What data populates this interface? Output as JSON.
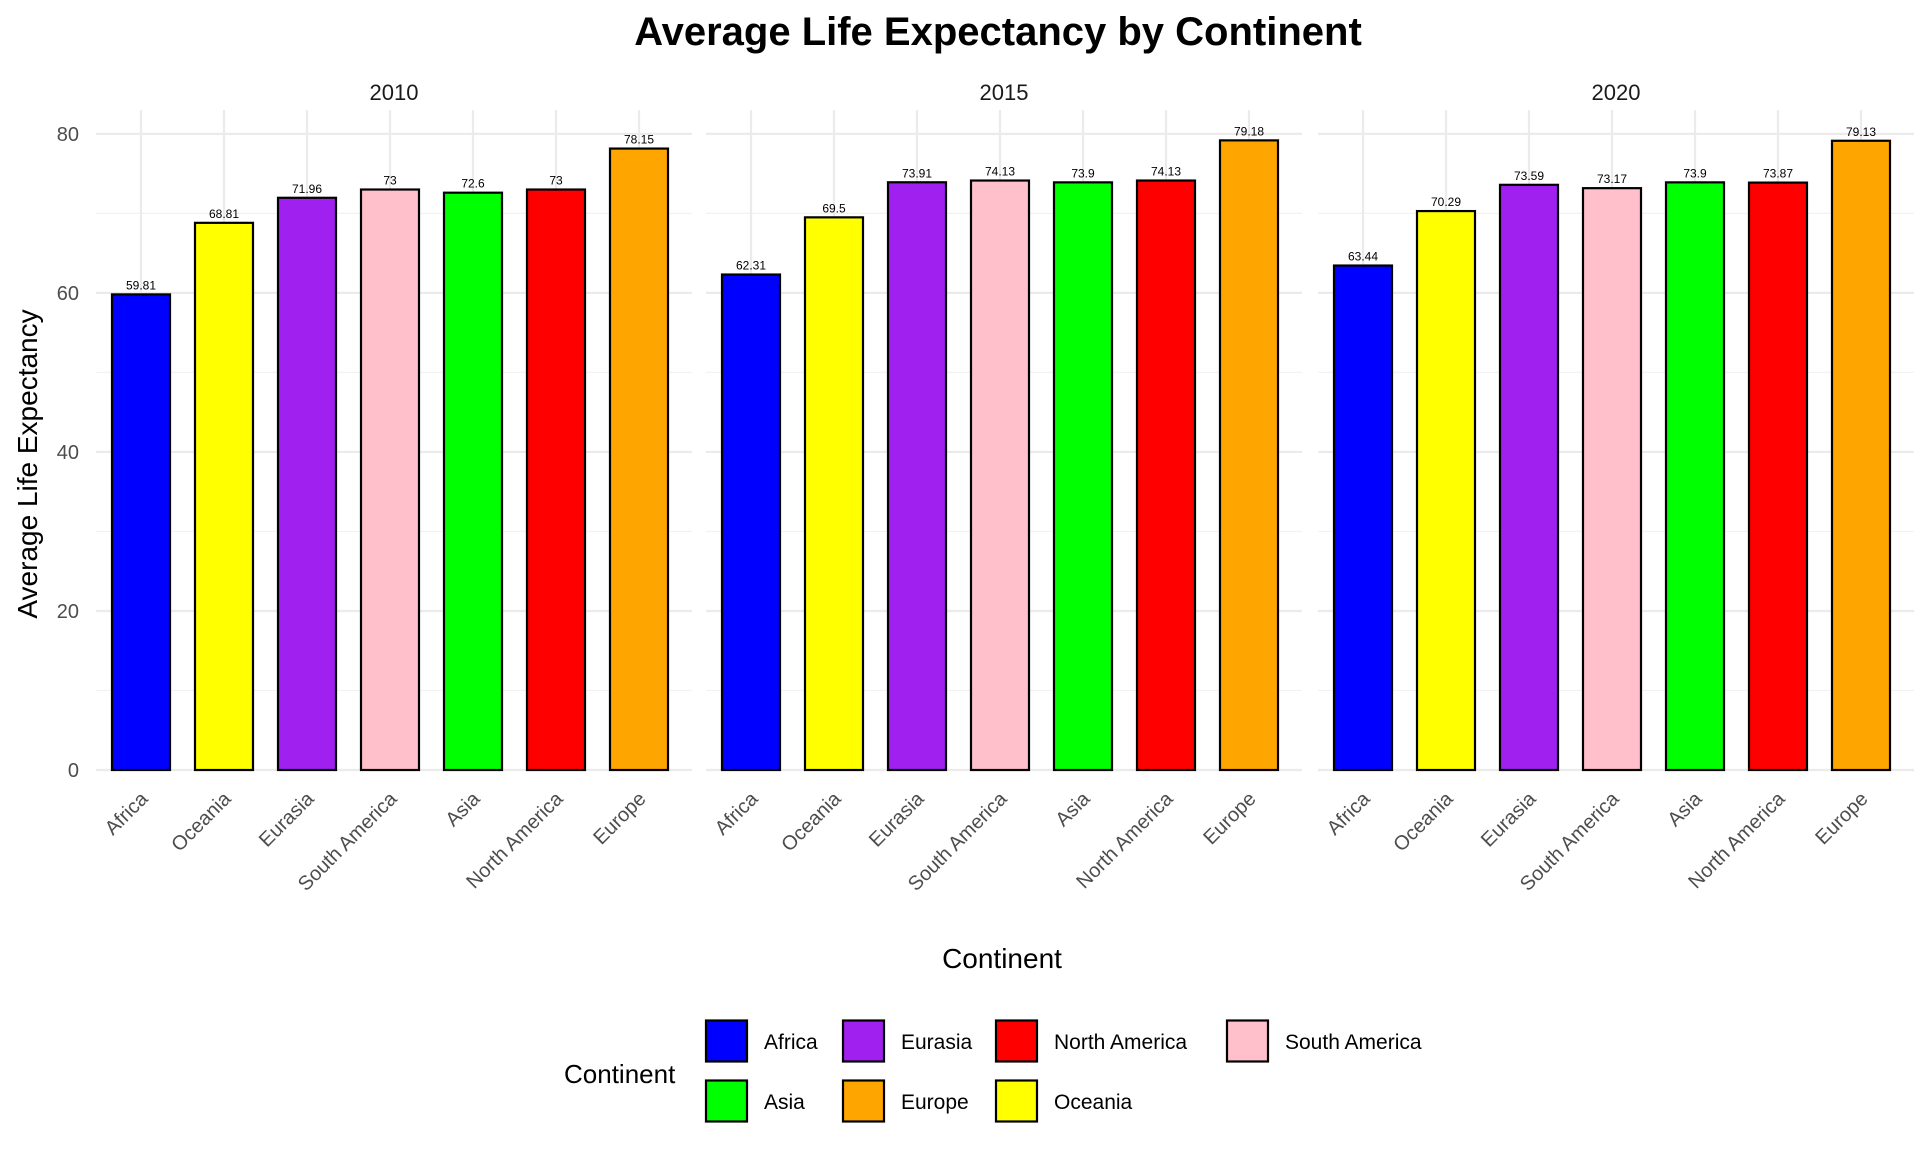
{
  "chart_data": {
    "type": "bar",
    "title": "Average Life Expectancy by Continent",
    "xlabel": "Continent",
    "ylabel": "Average Life Expectancy",
    "ylim": [
      0,
      83
    ],
    "yticks": [
      0,
      20,
      40,
      60,
      80
    ],
    "grid": true,
    "legend_position": "bottom",
    "legend_title": "Continent",
    "categories": [
      "Africa",
      "Oceania",
      "Eurasia",
      "South America",
      "Asia",
      "North America",
      "Europe"
    ],
    "colors": {
      "Africa": "#0000FF",
      "Oceania": "#FFFF00",
      "Eurasia": "#A020F0",
      "South America": "#FFC0CB",
      "Asia": "#00FF00",
      "North America": "#FF0000",
      "Europe": "#FFA500"
    },
    "legend_order": [
      "Africa",
      "Eurasia",
      "North America",
      "South America",
      "Asia",
      "Europe",
      "Oceania"
    ],
    "panels": [
      {
        "label": "2010",
        "values": [
          59.81,
          68.81,
          71.96,
          73,
          72.6,
          73,
          78.15
        ]
      },
      {
        "label": "2015",
        "values": [
          62.31,
          69.5,
          73.91,
          74.13,
          73.9,
          74.13,
          79.18
        ]
      },
      {
        "label": "2020",
        "values": [
          63.44,
          70.29,
          73.59,
          73.17,
          73.9,
          73.87,
          79.13
        ]
      }
    ]
  }
}
